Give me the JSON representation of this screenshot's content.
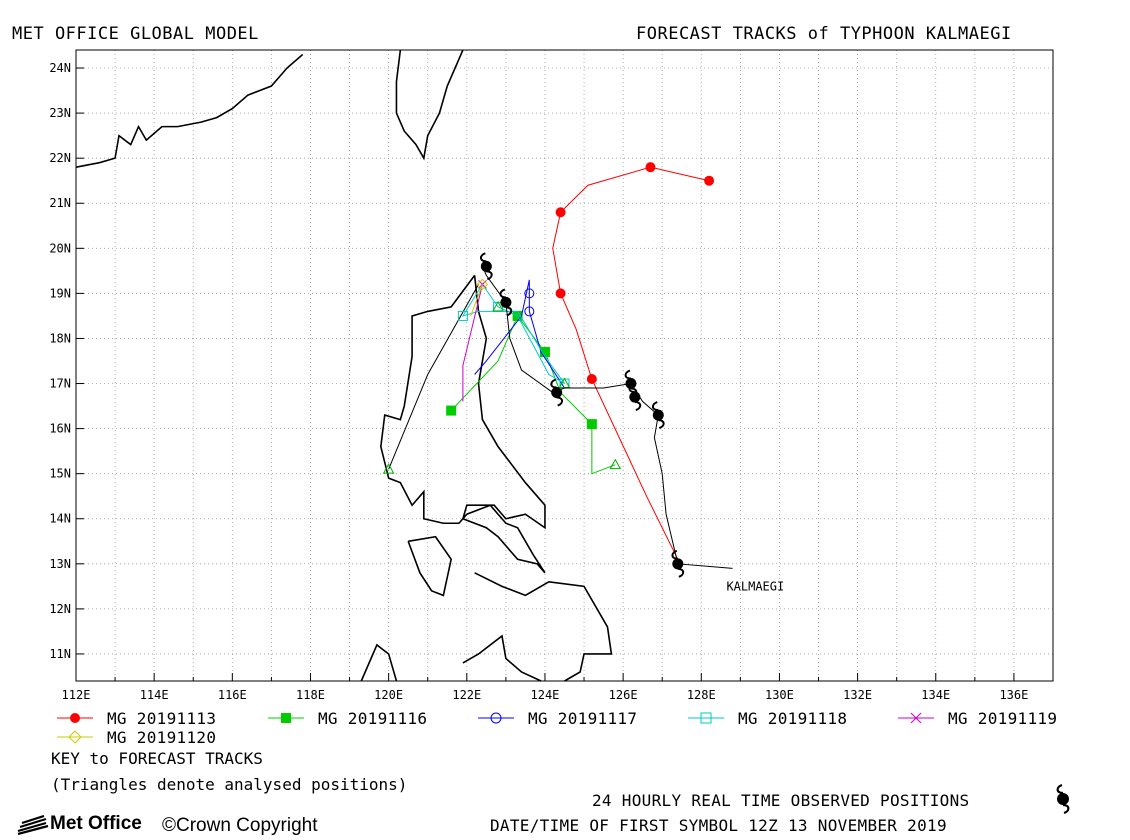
{
  "header": {
    "left_title": "MET OFFICE GLOBAL MODEL",
    "right_title": "FORECAST TRACKS of TYPHOON KALMAEGI"
  },
  "map": {
    "lon_range": [
      112,
      137
    ],
    "lat_range": [
      10.4,
      24.4
    ],
    "lon_ticks": [
      112,
      114,
      116,
      118,
      120,
      122,
      124,
      126,
      128,
      130,
      132,
      134,
      136
    ],
    "lat_ticks": [
      11,
      12,
      13,
      14,
      15,
      16,
      17,
      18,
      19,
      20,
      21,
      22,
      23,
      24
    ],
    "lon_tick_labels": [
      "112E",
      "114E",
      "116E",
      "118E",
      "120E",
      "122E",
      "124E",
      "126E",
      "128E",
      "130E",
      "132E",
      "134E",
      "136E"
    ],
    "lat_tick_labels": [
      "11N",
      "12N",
      "13N",
      "14N",
      "15N",
      "16N",
      "17N",
      "18N",
      "19N",
      "20N",
      "21N",
      "22N",
      "23N",
      "24N"
    ],
    "grid": true,
    "storm_label": "KALMAEGI",
    "storm_label_pos": [
      128.9,
      12.5
    ],
    "coastlines": [
      [
        [
          112,
          21.8
        ],
        [
          112.6,
          21.9
        ],
        [
          113,
          22.0
        ],
        [
          113.1,
          22.5
        ],
        [
          113.4,
          22.3
        ],
        [
          113.6,
          22.7
        ],
        [
          113.8,
          22.4
        ],
        [
          114.2,
          22.7
        ],
        [
          114.6,
          22.7
        ],
        [
          115.2,
          22.8
        ],
        [
          115.6,
          22.9
        ],
        [
          116,
          23.1
        ],
        [
          116.4,
          23.4
        ],
        [
          117,
          23.6
        ],
        [
          117.4,
          24.0
        ],
        [
          117.8,
          24.3
        ]
      ],
      [
        [
          120.3,
          24.4
        ],
        [
          120.2,
          23.7
        ],
        [
          120.2,
          23.0
        ],
        [
          120.4,
          22.6
        ],
        [
          120.7,
          22.3
        ],
        [
          120.9,
          22.0
        ],
        [
          121.0,
          22.5
        ],
        [
          121.3,
          23.0
        ],
        [
          121.5,
          23.6
        ],
        [
          121.8,
          24.2
        ],
        [
          121.9,
          24.4
        ]
      ],
      [
        [
          122.2,
          19.4
        ],
        [
          121.6,
          18.7
        ],
        [
          121.0,
          18.6
        ],
        [
          120.6,
          18.5
        ],
        [
          120.6,
          17.6
        ],
        [
          120.4,
          16.5
        ],
        [
          120.3,
          16.2
        ],
        [
          119.9,
          16.3
        ],
        [
          119.8,
          15.6
        ],
        [
          120.0,
          14.9
        ],
        [
          120.3,
          14.8
        ],
        [
          120.6,
          14.3
        ],
        [
          120.9,
          14.6
        ],
        [
          120.9,
          14.0
        ],
        [
          121.4,
          13.9
        ],
        [
          121.8,
          13.9
        ],
        [
          122.0,
          14.1
        ],
        [
          122.6,
          14.3
        ],
        [
          123.0,
          13.9
        ],
        [
          123.3,
          13.8
        ],
        [
          123.7,
          13.2
        ],
        [
          124.0,
          12.8
        ],
        [
          123.8,
          13.0
        ],
        [
          123.3,
          13.1
        ],
        [
          122.8,
          13.6
        ],
        [
          122.5,
          13.8
        ],
        [
          121.9,
          14.0
        ],
        [
          122.0,
          14.3
        ],
        [
          122.7,
          14.3
        ],
        [
          123.0,
          14.0
        ],
        [
          123.5,
          14.1
        ],
        [
          124.0,
          13.8
        ],
        [
          124.0,
          14.3
        ],
        [
          123.5,
          14.8
        ],
        [
          122.8,
          15.6
        ],
        [
          122.4,
          16.2
        ],
        [
          122.3,
          17.0
        ],
        [
          122.5,
          18.0
        ],
        [
          122.3,
          18.6
        ],
        [
          122.2,
          19.4
        ]
      ],
      [
        [
          120.5,
          13.5
        ],
        [
          121.2,
          13.6
        ],
        [
          121.6,
          13.1
        ],
        [
          121.4,
          12.3
        ],
        [
          121.1,
          12.4
        ],
        [
          120.8,
          12.8
        ],
        [
          120.5,
          13.5
        ]
      ],
      [
        [
          122.2,
          12.8
        ],
        [
          122.9,
          12.5
        ],
        [
          123.5,
          12.3
        ],
        [
          124.1,
          12.6
        ],
        [
          125.0,
          12.5
        ],
        [
          125.6,
          11.6
        ],
        [
          125.7,
          11.0
        ],
        [
          125.0,
          11.0
        ],
        [
          124.9,
          10.6
        ],
        [
          124.5,
          10.4
        ]
      ],
      [
        [
          121.9,
          10.8
        ],
        [
          122.3,
          11.0
        ],
        [
          122.9,
          11.4
        ],
        [
          123.0,
          10.9
        ],
        [
          123.4,
          10.6
        ],
        [
          123.9,
          10.4
        ]
      ],
      [
        [
          119.3,
          10.4
        ],
        [
          119.7,
          11.2
        ],
        [
          120.0,
          11.0
        ],
        [
          120.2,
          10.4
        ]
      ]
    ]
  },
  "chart_data": {
    "type": "scatter",
    "x_unit": "degrees longitude East",
    "y_unit": "degrees latitude North",
    "xlim": [
      112,
      137
    ],
    "ylim": [
      10.4,
      24.4
    ],
    "observed": {
      "label": "24 HOURLY REAL TIME OBSERVED POSITIONS",
      "color": "#000000",
      "track": [
        [
          128.8,
          12.9
        ],
        [
          127.4,
          13.0
        ],
        [
          127.1,
          14.1
        ],
        [
          127.0,
          15.0
        ],
        [
          126.8,
          15.8
        ],
        [
          126.9,
          16.3
        ],
        [
          126.5,
          16.6
        ],
        [
          126.2,
          17.0
        ],
        [
          125.5,
          16.9
        ],
        [
          124.5,
          16.9
        ],
        [
          124.2,
          16.8
        ],
        [
          123.4,
          17.3
        ],
        [
          123.1,
          18.0
        ],
        [
          123.0,
          18.8
        ],
        [
          122.5,
          19.4
        ],
        [
          122.4,
          19.6
        ]
      ],
      "positions": [
        [
          127.4,
          13.0
        ],
        [
          126.9,
          16.3
        ],
        [
          126.3,
          16.7
        ],
        [
          126.2,
          17.0
        ],
        [
          124.3,
          16.8
        ],
        [
          123.0,
          18.8
        ],
        [
          122.5,
          19.6
        ]
      ]
    },
    "series": [
      {
        "name": "MG 20191113",
        "color": "#ff0000",
        "marker": "filled-circle",
        "track": [
          [
            127.4,
            13.1
          ],
          [
            126.6,
            14.5
          ],
          [
            125.9,
            15.8
          ],
          [
            125.2,
            17.1
          ],
          [
            124.8,
            18.2
          ],
          [
            124.4,
            19.0
          ],
          [
            124.2,
            20.0
          ],
          [
            124.4,
            20.8
          ],
          [
            125.1,
            21.4
          ],
          [
            126.7,
            21.8
          ],
          [
            128.2,
            21.5
          ]
        ],
        "points": [
          [
            125.2,
            17.1
          ],
          [
            124.4,
            19.0
          ],
          [
            124.4,
            20.8
          ],
          [
            126.7,
            21.8
          ],
          [
            128.2,
            21.5
          ]
        ]
      },
      {
        "name": "MG 20191116",
        "color": "#00cc00",
        "marker": "filled-square",
        "track": [
          [
            125.8,
            15.2
          ],
          [
            125.2,
            15.0
          ],
          [
            125.2,
            16.1
          ],
          [
            124.4,
            16.8
          ],
          [
            124.0,
            17.7
          ],
          [
            123.3,
            18.5
          ],
          [
            122.8,
            17.5
          ],
          [
            121.6,
            16.4
          ]
        ],
        "points": [
          [
            125.2,
            16.1
          ],
          [
            124.0,
            17.7
          ],
          [
            123.3,
            18.5
          ],
          [
            121.6,
            16.4
          ]
        ]
      },
      {
        "name": "MG 20191117",
        "color": "#0000ff",
        "marker": "open-circle",
        "track": [
          [
            124.5,
            16.9
          ],
          [
            123.9,
            17.7
          ],
          [
            123.6,
            18.6
          ],
          [
            123.6,
            19.3
          ],
          [
            123.4,
            18.5
          ],
          [
            122.5,
            17.5
          ],
          [
            122.2,
            17.2
          ]
        ],
        "points": [
          [
            123.6,
            18.6
          ],
          [
            123.6,
            19.0
          ]
        ]
      },
      {
        "name": "MG 20191118",
        "color": "#00c8c8",
        "marker": "open-square",
        "track": [
          [
            124.5,
            17.0
          ],
          [
            124.0,
            17.6
          ],
          [
            123.3,
            18.6
          ],
          [
            122.3,
            18.6
          ],
          [
            121.9,
            18.5
          ],
          [
            122.4,
            19.2
          ],
          [
            122.8,
            18.7
          ],
          [
            123.3,
            18.5
          ],
          [
            124.1,
            17.2
          ],
          [
            124.5,
            17.0
          ]
        ],
        "points": [
          [
            121.9,
            18.5
          ],
          [
            124.5,
            17.0
          ],
          [
            122.8,
            18.7
          ]
        ]
      },
      {
        "name": "MG 20191119",
        "color": "#cc00cc",
        "marker": "cross",
        "track": [
          [
            122.4,
            19.2
          ],
          [
            121.9,
            17.4
          ],
          [
            121.9,
            16.6
          ]
        ],
        "points": [
          [
            122.4,
            19.2
          ]
        ]
      },
      {
        "name": "MG 20191120",
        "color": "#cccc00",
        "marker": "open-diamond",
        "track": [
          [
            122.4,
            19.2
          ],
          [
            122.1,
            18.5
          ]
        ],
        "points": [
          [
            122.4,
            19.2
          ]
        ]
      }
    ],
    "analysed_triangles": [
      [
        125.8,
        15.2
      ],
      [
        124.5,
        17.0
      ],
      [
        122.8,
        18.7
      ],
      [
        120.0,
        15.1
      ]
    ],
    "black_track": [
      [
        122.3,
        19.2
      ],
      [
        121.0,
        17.2
      ],
      [
        120.0,
        15.1
      ]
    ]
  },
  "legend": {
    "row1": [
      "MG 20191113",
      "MG 20191116",
      "MG 20191117",
      "MG 20191118",
      "MG 20191119"
    ],
    "row2": [
      "MG 20191120"
    ],
    "key_title": "KEY to FORECAST TRACKS",
    "key_note": "(Triangles denote analysed positions)"
  },
  "footer": {
    "observed_label": "24 HOURLY REAL TIME OBSERVED POSITIONS",
    "datetime_label": "DATE/TIME OF FIRST SYMBOL 12Z 13 NOVEMBER 2019",
    "logo_text": "Met Office",
    "copyright": "©Crown Copyright"
  }
}
